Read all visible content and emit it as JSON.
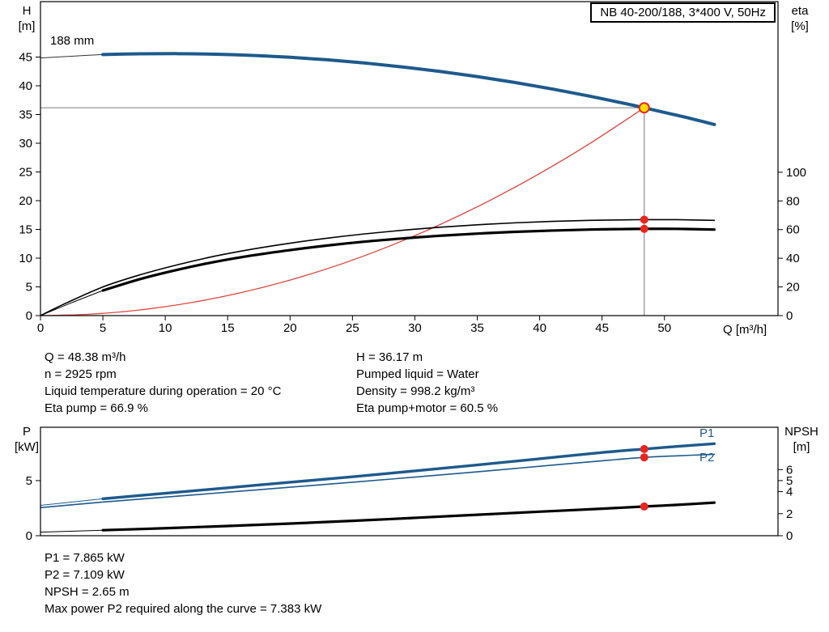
{
  "title_box": "NB 40-200/188, 3*400 V, 50Hz",
  "readouts": {
    "top_left": [
      "Q = 48.38 m³/h",
      "n = 2925 rpm",
      "Liquid temperature during operation = 20 °C",
      "Eta pump = 66.9 %"
    ],
    "top_right": [
      "H = 36.17 m",
      "Pumped liquid = Water",
      "Density = 998.2 kg/m³",
      "Eta pump+motor = 60.5 %"
    ],
    "bottom": [
      "P1 = 7.865 kW",
      "P2 = 7.109 kW",
      "NPSH = 2.65 m",
      "Max power P2 required along the curve = 7.383 kW"
    ]
  },
  "chart_data": [
    {
      "type": "line",
      "name": "hq-curve-chart",
      "title": "NB 40-200/188, 3*400 V, 50Hz",
      "impeller_label": "188 mm",
      "axes": {
        "x": {
          "label": "Q [m³/h]",
          "range": [
            0,
            59.1
          ],
          "ticks": [
            0,
            5,
            10,
            15,
            20,
            25,
            30,
            35,
            40,
            45,
            50
          ]
        },
        "y_left": {
          "label": "H",
          "unit": "[m]",
          "range": [
            0,
            54.65
          ],
          "ticks": [
            0,
            5,
            10,
            15,
            20,
            25,
            30,
            35,
            40,
            45
          ]
        },
        "y_right": {
          "label": "eta",
          "unit": "[%]",
          "range": [
            0,
            219
          ],
          "ticks": [
            0,
            20,
            40,
            60,
            80,
            100
          ]
        }
      },
      "series": [
        {
          "name": "pump-curve-lead",
          "axis": "left",
          "color": "#333333",
          "width": 1,
          "points": [
            [
              0,
              44.85
            ],
            [
              2.5,
              45.15
            ],
            [
              5,
              45.44
            ]
          ]
        },
        {
          "name": "system-curve",
          "axis": "left",
          "color": "#e0443a",
          "width": 1.3,
          "points": [
            [
              0,
              0
            ],
            [
              4,
              0.25
            ],
            [
              8,
              0.99
            ],
            [
              12,
              2.23
            ],
            [
              16,
              3.96
            ],
            [
              20,
              6.18
            ],
            [
              24,
              8.9
            ],
            [
              28,
              12.12
            ],
            [
              32,
              15.83
            ],
            [
              36,
              20.03
            ],
            [
              40,
              24.73
            ],
            [
              44,
              29.92
            ],
            [
              48.38,
              36.17
            ]
          ]
        },
        {
          "name": "eta-pump-motor-lead",
          "axis": "right",
          "color": "#000000",
          "width": 1,
          "points": [
            [
              0,
              0
            ],
            [
              2.5,
              9
            ],
            [
              5,
              17.5
            ]
          ]
        },
        {
          "name": "eta-pump-curve",
          "axis": "right",
          "color": "#000000",
          "width": 1.6,
          "points": [
            [
              0,
              0
            ],
            [
              2,
              8.5
            ],
            [
              5,
              20
            ],
            [
              8,
              28.5
            ],
            [
              11,
              35.5
            ],
            [
              14,
              41.5
            ],
            [
              17,
              46.4
            ],
            [
              20,
              50.5
            ],
            [
              23,
              54
            ],
            [
              26,
              57
            ],
            [
              29,
              59.5
            ],
            [
              32,
              61.6
            ],
            [
              35,
              63.3
            ],
            [
              38,
              64.7
            ],
            [
              41,
              65.7
            ],
            [
              44,
              66.4
            ],
            [
              47,
              66.8
            ],
            [
              48.38,
              66.9
            ],
            [
              51,
              66.9
            ],
            [
              54,
              66.4
            ]
          ]
        },
        {
          "name": "eta-pump-motor-curve",
          "axis": "right",
          "color": "#000000",
          "width": 3.2,
          "points": [
            [
              5,
              17.5
            ],
            [
              8,
              25.5
            ],
            [
              11,
              32
            ],
            [
              14,
              37.5
            ],
            [
              17,
              42
            ],
            [
              20,
              45.7
            ],
            [
              23,
              48.9
            ],
            [
              26,
              51.6
            ],
            [
              29,
              53.8
            ],
            [
              32,
              55.7
            ],
            [
              35,
              57.2
            ],
            [
              38,
              58.4
            ],
            [
              41,
              59.3
            ],
            [
              44,
              60
            ],
            [
              47,
              60.4
            ],
            [
              48.38,
              60.5
            ],
            [
              51,
              60.5
            ],
            [
              54,
              60
            ]
          ]
        },
        {
          "name": "pump-curve",
          "axis": "left",
          "color": "#1d5a8c",
          "width": 4,
          "points": [
            [
              5,
              45.44
            ],
            [
              8,
              45.57
            ],
            [
              11,
              45.59
            ],
            [
              14,
              45.5
            ],
            [
              17,
              45.29
            ],
            [
              20,
              44.96
            ],
            [
              23,
              44.52
            ],
            [
              26,
              43.96
            ],
            [
              29,
              43.28
            ],
            [
              32,
              42.5
            ],
            [
              35,
              41.6
            ],
            [
              38,
              40.58
            ],
            [
              41,
              39.45
            ],
            [
              44,
              38.2
            ],
            [
              47,
              36.84
            ],
            [
              48.38,
              36.17
            ],
            [
              50,
              35.36
            ],
            [
              52,
              34.36
            ],
            [
              54,
              33.26
            ]
          ]
        }
      ],
      "markers": [
        {
          "name": "eta-pump-point",
          "axis": "right",
          "x": 48.38,
          "y": 66.9,
          "r": 5,
          "fill": "#e8251f"
        },
        {
          "name": "eta-pump-motor-point",
          "axis": "right",
          "x": 48.38,
          "y": 60.5,
          "r": 5,
          "fill": "#e8251f"
        },
        {
          "name": "duty-point",
          "axis": "left",
          "x": 48.38,
          "y": 36.17,
          "r": 6,
          "fill": "#ffdf00",
          "stroke": "#e8251f"
        }
      ],
      "crosshair": {
        "x": 48.38,
        "y": 36.17,
        "color": "#8c8c8c"
      },
      "duty_point": {
        "Q": 48.38,
        "H": 36.17,
        "eta_pump": 66.9,
        "eta_pump_motor": 60.5
      }
    },
    {
      "type": "line",
      "name": "power-npsh-chart",
      "axes": {
        "x": {
          "label": "",
          "range": [
            0,
            59.1
          ],
          "ticks": []
        },
        "y_left": {
          "label": "P",
          "unit": "[kW]",
          "range": [
            0,
            9.84
          ],
          "ticks": [
            0,
            5
          ]
        },
        "y_right": {
          "label": "NPSH",
          "unit": "[m]",
          "range": [
            0,
            9.84
          ],
          "ticks": [
            0,
            2,
            4,
            5,
            6
          ]
        }
      },
      "series": [
        {
          "name": "p1-lead",
          "axis": "left",
          "color": "#1d5a8c",
          "width": 1,
          "points": [
            [
              0,
              2.75
            ],
            [
              5,
              3.35
            ]
          ]
        },
        {
          "name": "npsh-lead",
          "axis": "right",
          "color": "#000000",
          "width": 1,
          "points": [
            [
              0,
              0.32
            ],
            [
              5,
              0.5
            ]
          ]
        },
        {
          "name": "p2-curve",
          "axis": "left",
          "color": "#1d5a8c",
          "width": 1.6,
          "points": [
            [
              0,
              2.55
            ],
            [
              5,
              3.05
            ],
            [
              10,
              3.5
            ],
            [
              15,
              3.95
            ],
            [
              20,
              4.4
            ],
            [
              25,
              4.85
            ],
            [
              30,
              5.32
            ],
            [
              35,
              5.8
            ],
            [
              40,
              6.3
            ],
            [
              45,
              6.8
            ],
            [
              48.38,
              7.109
            ],
            [
              51,
              7.25
            ],
            [
              54,
              7.383
            ]
          ]
        },
        {
          "name": "p1-curve",
          "axis": "left",
          "color": "#1d5a8c",
          "width": 3.4,
          "points": [
            [
              5,
              3.35
            ],
            [
              10,
              3.85
            ],
            [
              15,
              4.35
            ],
            [
              20,
              4.85
            ],
            [
              25,
              5.35
            ],
            [
              30,
              5.88
            ],
            [
              35,
              6.42
            ],
            [
              40,
              6.98
            ],
            [
              45,
              7.55
            ],
            [
              48.38,
              7.865
            ],
            [
              51,
              8.1
            ],
            [
              54,
              8.35
            ]
          ]
        },
        {
          "name": "npsh-curve",
          "axis": "right",
          "color": "#000000",
          "width": 3.2,
          "points": [
            [
              5,
              0.5
            ],
            [
              10,
              0.68
            ],
            [
              15,
              0.88
            ],
            [
              20,
              1.1
            ],
            [
              25,
              1.35
            ],
            [
              30,
              1.62
            ],
            [
              35,
              1.9
            ],
            [
              40,
              2.18
            ],
            [
              45,
              2.45
            ],
            [
              48.38,
              2.65
            ],
            [
              51,
              2.8
            ],
            [
              54,
              3.0
            ]
          ]
        }
      ],
      "markers": [
        {
          "name": "p1-point",
          "axis": "left",
          "x": 48.38,
          "y": 7.865,
          "r": 5,
          "fill": "#e8251f"
        },
        {
          "name": "p2-point",
          "axis": "left",
          "x": 48.38,
          "y": 7.109,
          "r": 5,
          "fill": "#e8251f"
        },
        {
          "name": "npsh-point",
          "axis": "right",
          "x": 48.38,
          "y": 2.65,
          "r": 5,
          "fill": "#e8251f"
        }
      ],
      "curve_labels": [
        {
          "text": "P1"
        },
        {
          "text": "P2"
        }
      ],
      "duty_point": {
        "P1_kW": 7.865,
        "P2_kW": 7.109,
        "NPSH_m": 2.65
      }
    }
  ]
}
